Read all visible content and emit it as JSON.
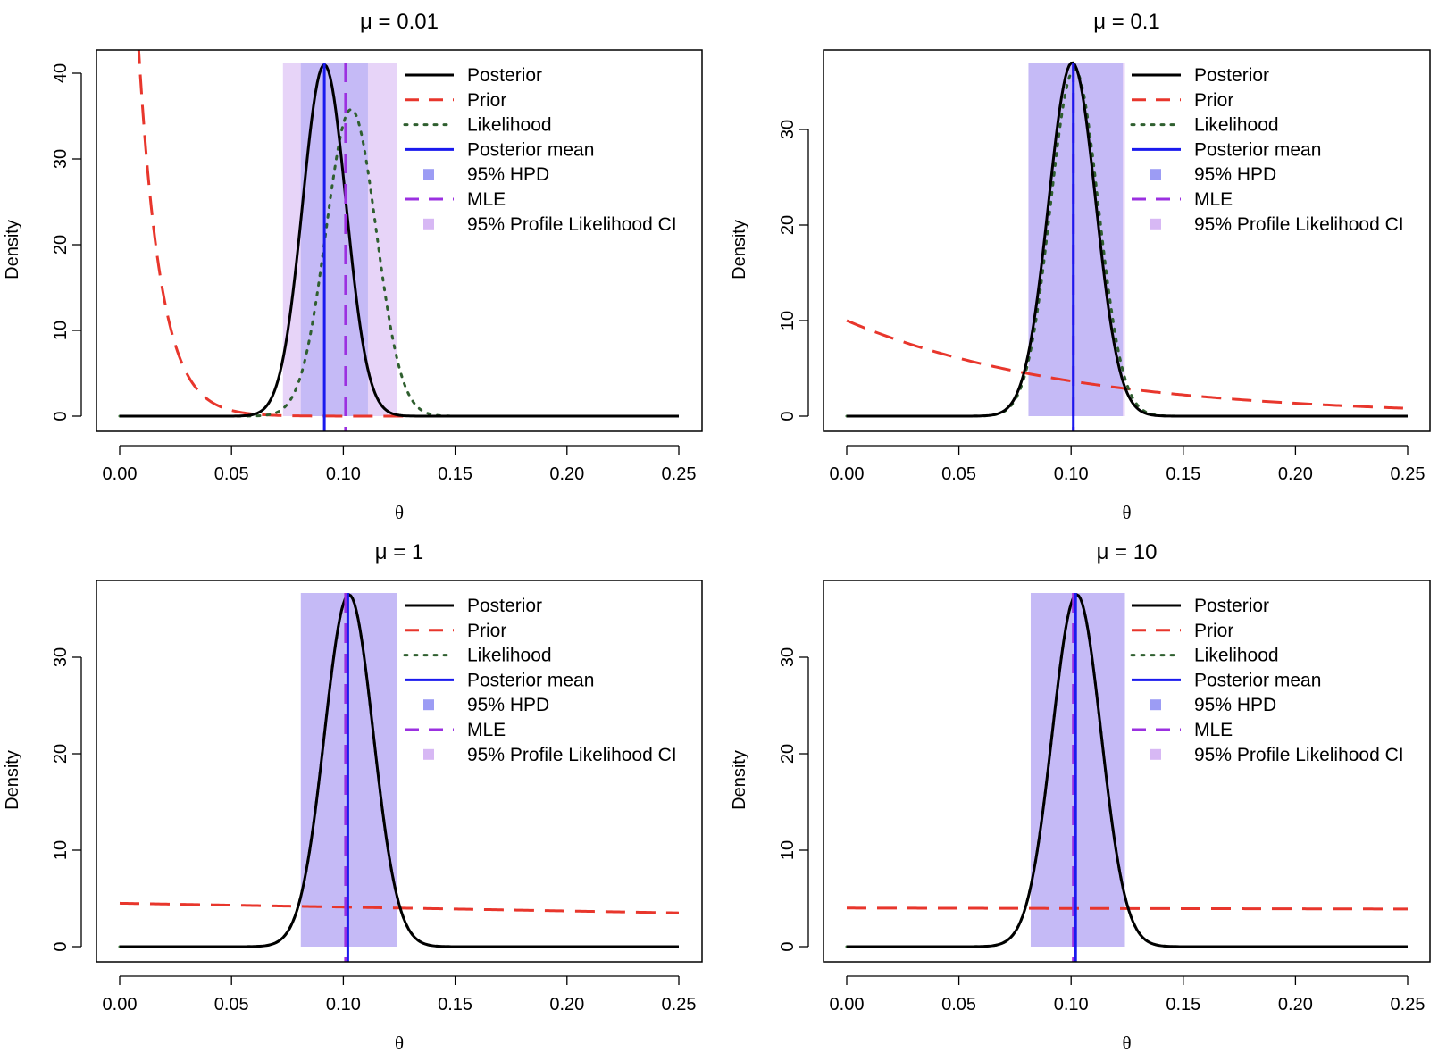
{
  "figure": {
    "colors": {
      "posterior": "#000000",
      "prior": "#e8362c",
      "likelihood": "#2f5f2f",
      "posterior_mean": "#1a1aee",
      "hpd": "#9c9cf4",
      "mle": "#9b30e0",
      "profile_ci": "#d7b8f4"
    }
  },
  "chart_data": [
    {
      "type": "line",
      "title": "μ = 0.01",
      "xlabel": "θ",
      "ylabel": "Density",
      "xlim": [
        0,
        0.25
      ],
      "ylim": [
        0,
        40
      ],
      "xticks": [
        "0.00",
        "0.05",
        "0.10",
        "0.15",
        "0.20",
        "0.25"
      ],
      "yticks": [
        "0",
        "10",
        "20",
        "30",
        "40"
      ],
      "legend": [
        "Posterior",
        "Prior",
        "Likelihood",
        "Posterior mean",
        "95% HPD",
        "MLE",
        "95% Profile Likelihood CI"
      ],
      "legend_position": "top-right",
      "posterior": {
        "mean": 0.0915,
        "sd": 0.0097,
        "peak": 41.0
      },
      "likelihood": {
        "mean": 0.1035,
        "sd": 0.0112,
        "peak": 35.8
      },
      "prior": {
        "type": "exponential",
        "rate": 100
      },
      "posterior_mean": 0.0915,
      "mle": 0.101,
      "hpd": [
        0.081,
        0.111
      ],
      "profile_ci": [
        0.073,
        0.124
      ]
    },
    {
      "type": "line",
      "title": "μ = 0.1",
      "xlabel": "θ",
      "ylabel": "Density",
      "xlim": [
        0,
        0.25
      ],
      "ylim": [
        0,
        37
      ],
      "xticks": [
        "0.00",
        "0.05",
        "0.10",
        "0.15",
        "0.20",
        "0.25"
      ],
      "yticks": [
        "0",
        "10",
        "20",
        "30"
      ],
      "legend": [
        "Posterior",
        "Prior",
        "Likelihood",
        "Posterior mean",
        "95% HPD",
        "MLE",
        "95% Profile Likelihood CI"
      ],
      "legend_position": "top-right",
      "posterior": {
        "mean": 0.1005,
        "sd": 0.0105,
        "peak": 37.0
      },
      "likelihood": {
        "mean": 0.1015,
        "sd": 0.0107,
        "peak": 36.3
      },
      "prior": {
        "type": "exponential",
        "rate": 10
      },
      "posterior_mean": 0.101,
      "mle": 0.101,
      "hpd": [
        0.081,
        0.123
      ],
      "profile_ci": [
        0.081,
        0.124
      ]
    },
    {
      "type": "line",
      "title": "μ = 1",
      "xlabel": "θ",
      "ylabel": "Density",
      "xlim": [
        0,
        0.25
      ],
      "ylim": [
        0,
        36.5
      ],
      "xticks": [
        "0.00",
        "0.05",
        "0.10",
        "0.15",
        "0.20",
        "0.25"
      ],
      "yticks": [
        "0",
        "10",
        "20",
        "30"
      ],
      "legend": [
        "Posterior",
        "Prior",
        "Likelihood",
        "Posterior mean",
        "95% HPD",
        "MLE",
        "95% Profile Likelihood CI"
      ],
      "legend_position": "top-right",
      "posterior": {
        "mean": 0.1025,
        "sd": 0.0109,
        "peak": 36.5
      },
      "likelihood": {
        "mean": 0.1025,
        "sd": 0.0109,
        "peak": 36.5
      },
      "prior": {
        "type": "linear",
        "values": [
          4.5,
          3.5
        ]
      },
      "posterior_mean": 0.102,
      "mle": 0.101,
      "hpd": [
        0.081,
        0.124
      ],
      "profile_ci": [
        0.081,
        0.124
      ]
    },
    {
      "type": "line",
      "title": "μ = 10",
      "xlabel": "θ",
      "ylabel": "Density",
      "xlim": [
        0,
        0.25
      ],
      "ylim": [
        0,
        36.5
      ],
      "xticks": [
        "0.00",
        "0.05",
        "0.10",
        "0.15",
        "0.20",
        "0.25"
      ],
      "yticks": [
        "0",
        "10",
        "20",
        "30"
      ],
      "legend": [
        "Posterior",
        "Prior",
        "Likelihood",
        "Posterior mean",
        "95% HPD",
        "MLE",
        "95% Profile Likelihood CI"
      ],
      "legend_position": "top-right",
      "posterior": {
        "mean": 0.1025,
        "sd": 0.0109,
        "peak": 36.5
      },
      "likelihood": {
        "mean": 0.1025,
        "sd": 0.0109,
        "peak": 36.5
      },
      "prior": {
        "type": "linear",
        "values": [
          4.0,
          3.9
        ]
      },
      "posterior_mean": 0.102,
      "mle": 0.101,
      "hpd": [
        0.082,
        0.124
      ],
      "profile_ci": [
        0.082,
        0.124
      ]
    }
  ]
}
